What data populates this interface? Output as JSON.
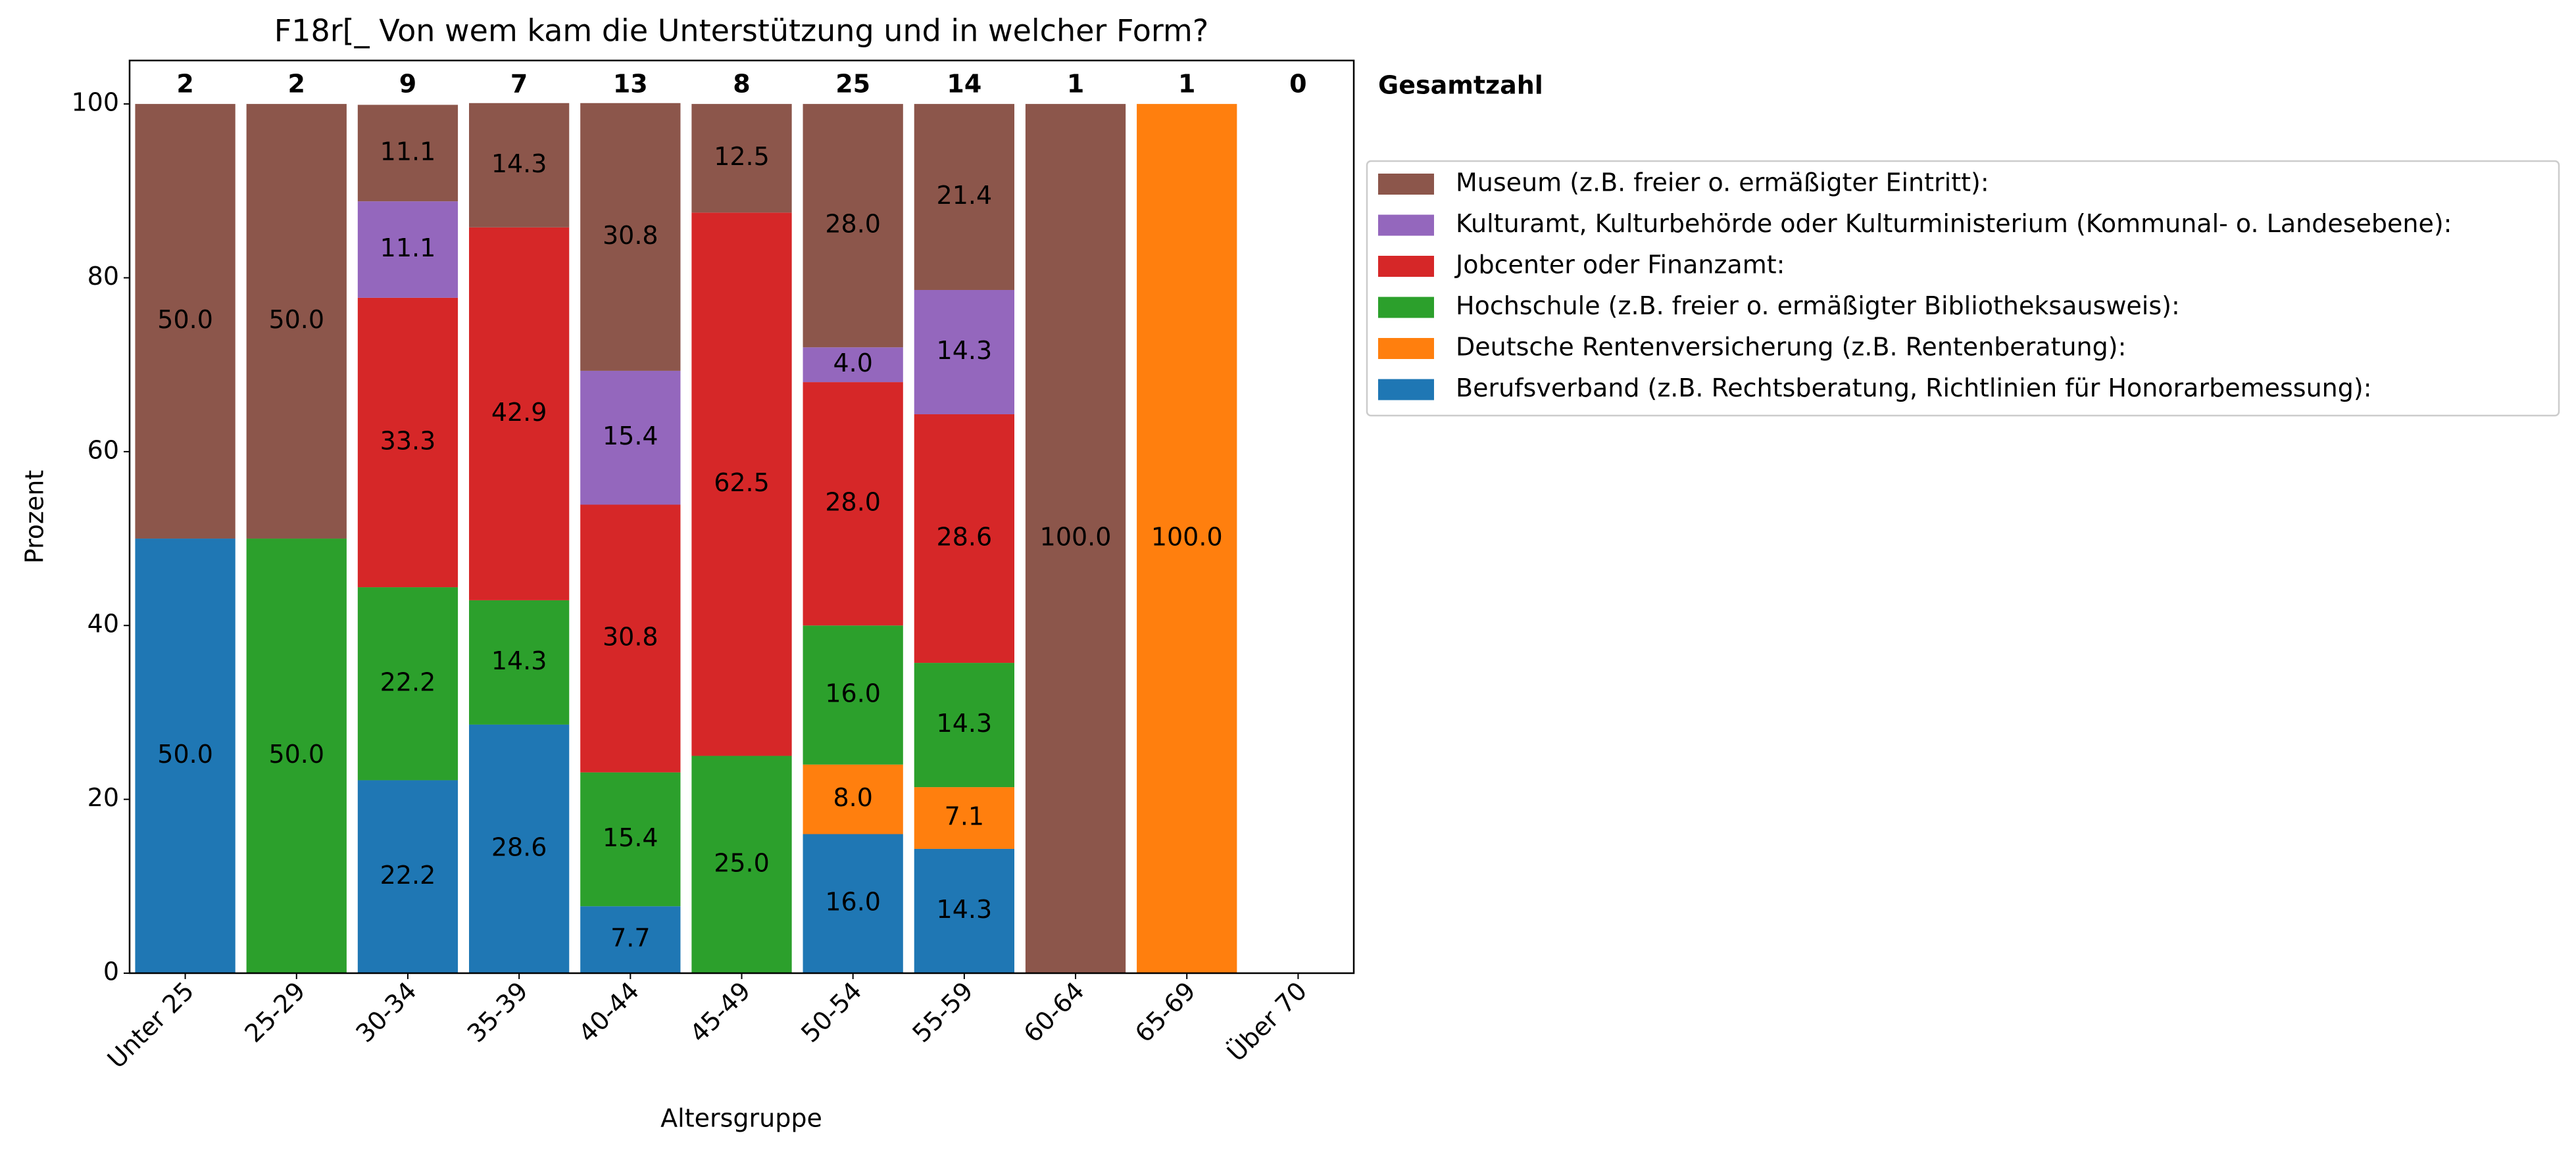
{
  "chart_data": {
    "type": "stacked_bar",
    "title": "F18r[_ Von wem kam die Unterstützung und in welcher Form?",
    "x_label": "Altersgruppe",
    "y_label": "Prozent",
    "categories": [
      "Unter 25",
      "25-29",
      "30-34",
      "35-39",
      "40-44",
      "45-49",
      "50-54",
      "55-59",
      "60-64",
      "65-69",
      "Über 70"
    ],
    "ylim": [
      0,
      105
    ],
    "yticks": [
      0,
      20,
      40,
      60,
      80,
      100
    ],
    "totals": {
      "label": "Gesamtzahl",
      "values": [
        2,
        2,
        9,
        7,
        13,
        8,
        25,
        14,
        1,
        1,
        0
      ]
    },
    "series": [
      {
        "name": "Berufsverband (z.B. Rechtsberatung, Richtlinien für Honorarbemessung):",
        "color": "#1f77b4",
        "values": [
          50,
          0,
          22.2,
          28.6,
          7.7,
          0,
          16,
          14.3,
          0,
          0,
          0
        ],
        "value_labels": [
          "50.0",
          null,
          "22.2",
          "28.6",
          "7.7",
          null,
          "16.0",
          "14.3",
          null,
          null,
          null
        ]
      },
      {
        "name": "Deutsche Rentenversicherung (z.B. Rentenberatung):",
        "color": "#ff7f0e",
        "values": [
          0,
          0,
          0,
          0,
          0,
          0,
          8,
          7.1,
          0,
          100,
          0
        ],
        "value_labels": [
          null,
          null,
          null,
          null,
          null,
          null,
          "8.0",
          "7.1",
          null,
          "100.0",
          null
        ]
      },
      {
        "name": "Hochschule (z.B. freier o. ermäßigter Bibliotheksausweis):",
        "color": "#2ca02c",
        "values": [
          0,
          50,
          22.2,
          14.3,
          15.4,
          25,
          16,
          14.3,
          0,
          0,
          0
        ],
        "value_labels": [
          null,
          "50.0",
          "22.2",
          "14.3",
          "15.4",
          "25.0",
          "16.0",
          "14.3",
          null,
          null,
          null
        ]
      },
      {
        "name": "Jobcenter oder Finanzamt:",
        "color": "#d62728",
        "values": [
          0,
          0,
          33.3,
          42.9,
          30.8,
          62.5,
          28,
          28.6,
          0,
          0,
          0
        ],
        "value_labels": [
          null,
          null,
          "33.3",
          "42.9",
          "30.8",
          "62.5",
          "28.0",
          "28.6",
          null,
          null,
          null
        ]
      },
      {
        "name": "Kulturamt, Kulturbehörde oder Kulturministerium (Kommunal- o. Landesebene):",
        "color": "#9467bd",
        "values": [
          0,
          0,
          11.1,
          0,
          15.4,
          0,
          4,
          14.3,
          0,
          0,
          0
        ],
        "value_labels": [
          null,
          null,
          "11.1",
          null,
          "15.4",
          null,
          "4.0",
          "14.3",
          null,
          null,
          null
        ]
      },
      {
        "name": "Museum (z.B. freier o. ermäßigter Eintritt):",
        "color": "#8c564b",
        "values": [
          50,
          50,
          11.1,
          14.3,
          30.8,
          12.5,
          28,
          21.4,
          100,
          0,
          0
        ],
        "value_labels": [
          "50.0",
          "50.0",
          "11.1",
          "14.3",
          "30.8",
          "12.5",
          "28.0",
          "21.4",
          "100.0",
          null,
          null
        ]
      }
    ]
  }
}
